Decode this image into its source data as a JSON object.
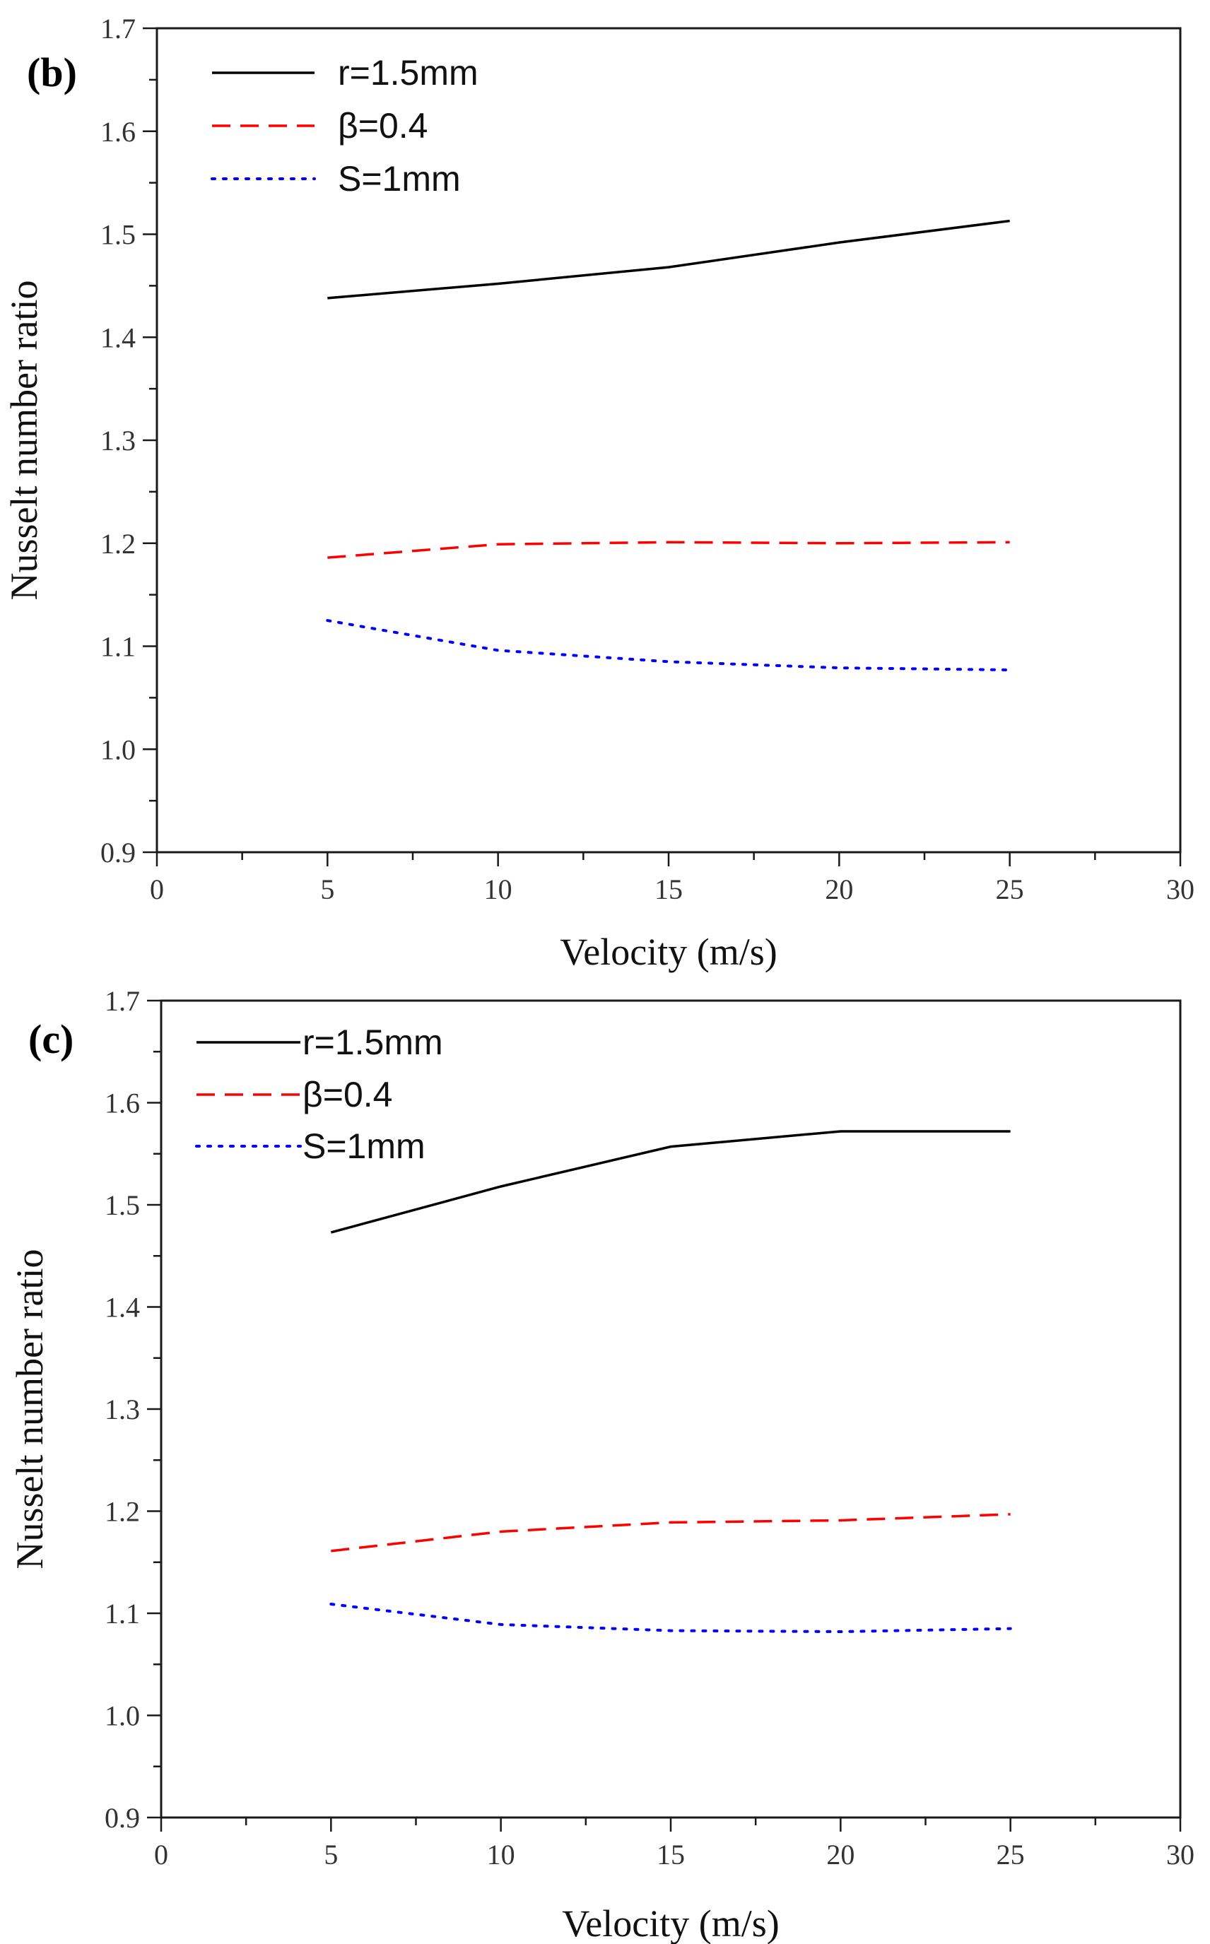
{
  "chart_data": [
    {
      "type": "line",
      "panel_label": "(b)",
      "xlabel": "Velocity (m/s)",
      "ylabel": "Nusselt number ratio",
      "xlim": [
        0,
        30
      ],
      "ylim": [
        0.9,
        1.7
      ],
      "xticks": [
        "0",
        "5",
        "10",
        "15",
        "20",
        "25",
        "30"
      ],
      "yticks": [
        "0.9",
        "1.0",
        "1.1",
        "1.2",
        "1.3",
        "1.4",
        "1.5",
        "1.6",
        "1.7"
      ],
      "x": [
        5,
        10,
        15,
        20,
        25
      ],
      "legend_position": "top-left",
      "series": [
        {
          "name": "r=1.5mm",
          "color": "#000000",
          "style": "solid",
          "values": [
            1.438,
            1.452,
            1.468,
            1.492,
            1.513
          ]
        },
        {
          "name": "β=0.4",
          "color": "#ff0000",
          "style": "dashed",
          "values": [
            1.186,
            1.199,
            1.201,
            1.2,
            1.201
          ]
        },
        {
          "name": "S=1mm",
          "color": "#0000ff",
          "style": "dotted",
          "values": [
            1.125,
            1.096,
            1.085,
            1.079,
            1.077
          ]
        }
      ]
    },
    {
      "type": "line",
      "panel_label": "(c)",
      "xlabel": "Velocity (m/s)",
      "ylabel": "Nusselt number ratio",
      "xlim": [
        0,
        30
      ],
      "ylim": [
        0.9,
        1.7
      ],
      "xticks": [
        "0",
        "5",
        "10",
        "15",
        "20",
        "25",
        "30"
      ],
      "yticks": [
        "0.9",
        "1.0",
        "1.1",
        "1.2",
        "1.3",
        "1.4",
        "1.5",
        "1.6",
        "1.7"
      ],
      "x": [
        5,
        10,
        15,
        20,
        25
      ],
      "legend_position": "top-left",
      "series": [
        {
          "name": "r=1.5mm",
          "color": "#000000",
          "style": "solid",
          "values": [
            1.473,
            1.518,
            1.557,
            1.572,
            1.572
          ]
        },
        {
          "name": "β=0.4",
          "color": "#ff0000",
          "style": "dashed",
          "values": [
            1.161,
            1.18,
            1.189,
            1.191,
            1.197
          ]
        },
        {
          "name": "S=1mm",
          "color": "#0000ff",
          "style": "dotted",
          "values": [
            1.109,
            1.089,
            1.083,
            1.082,
            1.085
          ]
        }
      ]
    }
  ]
}
